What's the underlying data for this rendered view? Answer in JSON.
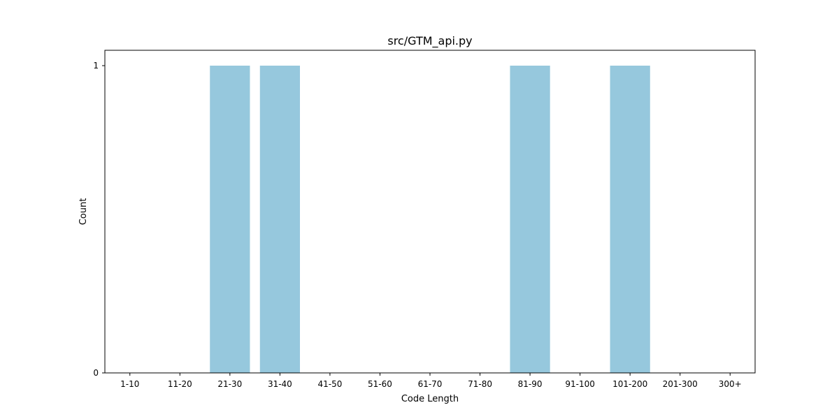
{
  "chart_data": {
    "type": "bar",
    "title": "src/GTM_api.py",
    "xlabel": "Code Length",
    "ylabel": "Count",
    "categories": [
      "1-10",
      "11-20",
      "21-30",
      "31-40",
      "41-50",
      "51-60",
      "61-70",
      "71-80",
      "81-90",
      "91-100",
      "101-200",
      "201-300",
      "300+"
    ],
    "values": [
      0,
      0,
      1,
      1,
      0,
      0,
      0,
      0,
      1,
      0,
      1,
      0,
      0
    ],
    "ylim": [
      0,
      1.05
    ],
    "yticks": [
      0,
      1
    ],
    "grid": false,
    "legend": "none",
    "bar_color": "#96c8dd"
  }
}
